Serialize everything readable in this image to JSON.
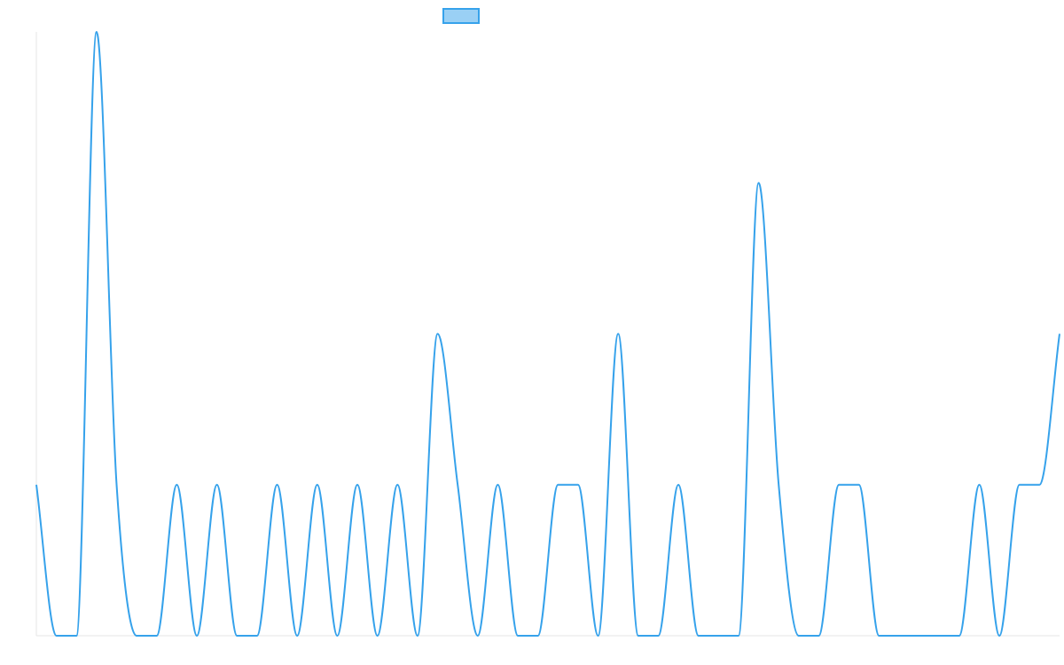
{
  "chart_data": {
    "type": "line",
    "title": "",
    "xlabel": "",
    "ylabel": "",
    "ylim": [
      0,
      4
    ],
    "grid": false,
    "legend": {
      "position": "top",
      "entries": [
        {
          "label": "",
          "color": "#36a2eb",
          "fill": "#9ad0f5"
        }
      ]
    },
    "x": [
      0,
      1,
      2,
      3,
      4,
      5,
      6,
      7,
      8,
      9,
      10,
      11,
      12,
      13,
      14,
      15,
      16,
      17,
      18,
      19,
      20,
      21,
      22,
      23,
      24,
      25,
      26,
      27,
      28,
      29,
      30,
      31,
      32,
      33,
      34,
      35,
      36,
      37,
      38,
      39,
      40,
      41,
      42,
      43,
      44,
      45,
      46,
      47,
      48,
      49,
      50,
      51
    ],
    "series": [
      {
        "color": "#36a2eb",
        "values": [
          1,
          0,
          0,
          4,
          1,
          0,
          0,
          1,
          0,
          1,
          0,
          0,
          1,
          0,
          1,
          0,
          1,
          0,
          1,
          0,
          2,
          1,
          0,
          1,
          0,
          0,
          1,
          1,
          0,
          2,
          0,
          0,
          1,
          0,
          0,
          0,
          3,
          1,
          0,
          0,
          1,
          1,
          0,
          0,
          0,
          0,
          0,
          1,
          0,
          1,
          1,
          2
        ]
      }
    ]
  }
}
